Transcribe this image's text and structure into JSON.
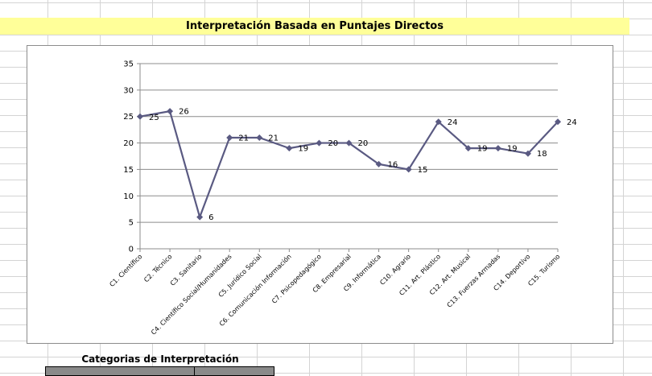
{
  "sheet": {
    "title": "Interpretación Basada en Puntajes Directos",
    "table_title": "Categorias de Interpretación",
    "accent_color": "#ffff99"
  },
  "chart_data": {
    "type": "line",
    "title": "",
    "xlabel": "",
    "ylabel": "",
    "ylim": [
      0,
      35
    ],
    "yticks": [
      0,
      5,
      10,
      15,
      20,
      25,
      30,
      35
    ],
    "grid": true,
    "legend": "none",
    "line_color": "#5a5a82",
    "categories": [
      "C1. Científico",
      "C2. Técnico",
      "C3. Sanitario",
      "C4. Científico Social/Humanidades",
      "C5. Jurídico Social",
      "C6. Comunicación Información",
      "C7. Psicopedagógico",
      "C8. Empresarial",
      "C9. Informática",
      "C10. Agrario",
      "C11. Art. Plástico",
      "C12. Art. Musical",
      "C13. Fuerzas Armadas",
      "C14. Deportivo",
      "C15. Turismo"
    ],
    "series": [
      {
        "values": [
          25,
          26,
          6,
          21,
          21,
          19,
          20,
          20,
          16,
          15,
          24,
          19,
          19,
          18,
          24
        ]
      }
    ]
  }
}
